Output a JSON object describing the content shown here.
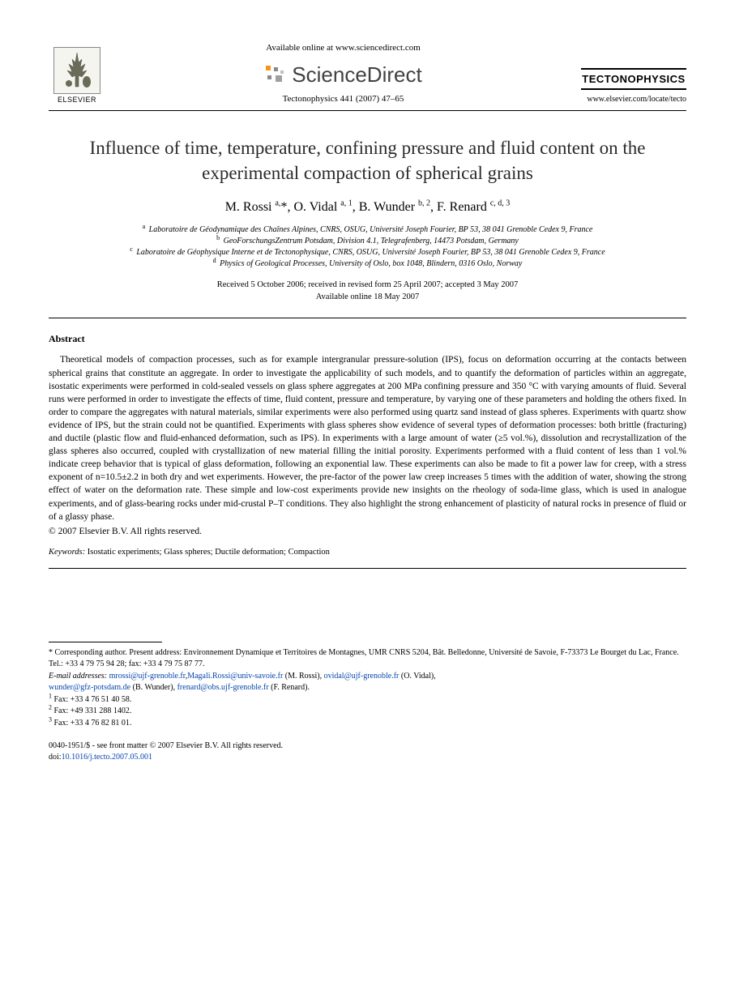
{
  "header": {
    "available_text": "Available online at www.sciencedirect.com",
    "sciencedirect_label": "ScienceDirect",
    "elsevier_label": "ELSEVIER",
    "journal_name": "TECTONOPHYSICS",
    "journal_citation": "Tectonophysics 441 (2007) 47–65",
    "journal_url": "www.elsevier.com/locate/tecto"
  },
  "article": {
    "title": "Influence of time, temperature, confining pressure and fluid content on the experimental compaction of spherical grains",
    "authors_html": "M. Rossi <sup>a,</sup>*, O. Vidal <sup>a, 1</sup>, B. Wunder <sup>b, 2</sup>, F. Renard <sup>c, d, 3</sup>",
    "affiliations": [
      {
        "sup": "a",
        "text": "Laboratoire de Géodynamique des Chaînes Alpines, CNRS, OSUG, Université Joseph Fourier, BP 53, 38 041 Grenoble Cedex 9, France"
      },
      {
        "sup": "b",
        "text": "GeoForschungsZentrum Potsdam, Division 4.1, Telegrafenberg, 14473 Potsdam, Germany"
      },
      {
        "sup": "c",
        "text": "Laboratoire de Géophysique Interne et de Tectonophysique, CNRS, OSUG, Université Joseph Fourier, BP 53, 38 041 Grenoble Cedex 9, France"
      },
      {
        "sup": "d",
        "text": "Physics of Geological Processes, University of Oslo, box 1048, Blindern, 0316 Oslo, Norway"
      }
    ],
    "dates_line1": "Received 5 October 2006; received in revised form 25 April 2007; accepted 3 May 2007",
    "dates_line2": "Available online 18 May 2007"
  },
  "abstract": {
    "heading": "Abstract",
    "body": "Theoretical models of compaction processes, such as for example intergranular pressure-solution (IPS), focus on deformation occurring at the contacts between spherical grains that constitute an aggregate. In order to investigate the applicability of such models, and to quantify the deformation of particles within an aggregate, isostatic experiments were performed in cold-sealed vessels on glass sphere aggregates at 200 MPa confining pressure and 350 °C with varying amounts of fluid. Several runs were performed in order to investigate the effects of time, fluid content, pressure and temperature, by varying one of these parameters and holding the others fixed. In order to compare the aggregates with natural materials, similar experiments were also performed using quartz sand instead of glass spheres. Experiments with quartz show evidence of IPS, but the strain could not be quantified. Experiments with glass spheres show evidence of several types of deformation processes: both brittle (fracturing) and ductile (plastic flow and fluid-enhanced deformation, such as IPS). In experiments with a large amount of water (≥5 vol.%), dissolution and recrystallization of the glass spheres also occurred, coupled with crystallization of new material filling the initial porosity. Experiments performed with a fluid content of less than 1 vol.% indicate creep behavior that is typical of glass deformation, following an exponential law. These experiments can also be made to fit a power law for creep, with a stress exponent of n=10.5±2.2 in both dry and wet experiments. However, the pre-factor of the power law creep increases 5 times with the addition of water, showing the strong effect of water on the deformation rate. These simple and low-cost experiments provide new insights on the rheology of soda-lime glass, which is used in analogue experiments, and of glass-bearing rocks under mid-crustal P–T conditions. They also highlight the strong enhancement of plasticity of natural rocks in presence of fluid or of a glassy phase.",
    "copyright": "© 2007 Elsevier B.V. All rights reserved."
  },
  "keywords": {
    "label": "Keywords:",
    "text": "Isostatic experiments; Glass spheres; Ductile deformation; Compaction"
  },
  "footnotes": {
    "corresponding": "* Corresponding author. Present address: Environnement Dynamique et Territoires de Montagnes, UMR CNRS 5204, Bât. Belledonne, Université de Savoie, F-73373 Le Bourget du Lac, France. Tel.: +33 4 79 75 94 28; fax: +33 4 79 75 87 77.",
    "email_label": "E-mail addresses:",
    "emails": [
      {
        "addr": "mrossi@ujf-grenoble.fr",
        "who": ","
      },
      {
        "addr": "Magali.Rossi@univ-savoie.fr",
        "who": " (M. Rossi), "
      },
      {
        "addr": "ovidal@ujf-grenoble.fr",
        "who": " (O. Vidal),"
      },
      {
        "addr": "wunder@gfz-potsdam.de",
        "who": " (B. Wunder), "
      },
      {
        "addr": "frenard@obs.ujf-grenoble.fr",
        "who": " (F. Renard)."
      }
    ],
    "faxes": [
      {
        "sup": "1",
        "text": "Fax: +33 4 76 51 40 58."
      },
      {
        "sup": "2",
        "text": "Fax: +49 331 288 1402."
      },
      {
        "sup": "3",
        "text": "Fax: +33 4 76 82 81 01."
      }
    ]
  },
  "footer": {
    "line1": "0040-1951/$ - see front matter © 2007 Elsevier B.V. All rights reserved.",
    "doi_label": "doi:",
    "doi": "10.1016/j.tecto.2007.05.001"
  },
  "colors": {
    "text": "#000000",
    "link": "#0645ad",
    "background": "#ffffff",
    "sd_gray": "#414141"
  },
  "typography": {
    "title_fontsize": 23,
    "authors_fontsize": 16,
    "body_fontsize": 11.5,
    "small_fontsize": 10
  }
}
